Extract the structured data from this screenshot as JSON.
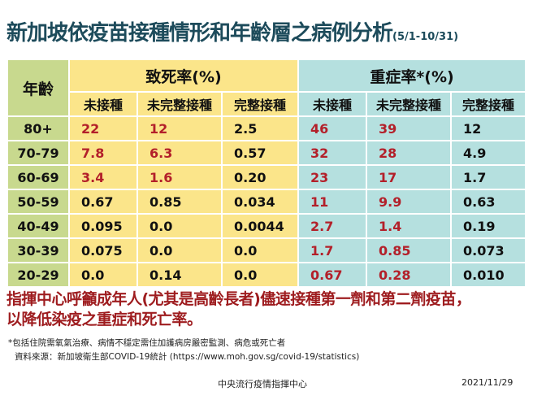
{
  "title": "新加坡依疫苗接種情形和年齡層之病例分析",
  "date_range": "(5/1-10/31)",
  "table": {
    "age_header": "年齡",
    "groups": [
      "致死率(%)",
      "重症率*(%)"
    ],
    "subheaders": [
      "未接種",
      "未完整接種",
      "完整接種",
      "未接種",
      "未完整接種",
      "完整接種"
    ],
    "rows": [
      {
        "age": "80+",
        "values": [
          "22",
          "12",
          "2.5",
          "46",
          "39",
          "12"
        ],
        "highlight": [
          true,
          true,
          false,
          true,
          true,
          false
        ]
      },
      {
        "age": "70-79",
        "values": [
          "7.8",
          "6.3",
          "0.57",
          "32",
          "28",
          "4.9"
        ],
        "highlight": [
          true,
          true,
          false,
          true,
          true,
          false
        ]
      },
      {
        "age": "60-69",
        "values": [
          "3.4",
          "1.6",
          "0.20",
          "23",
          "17",
          "1.7"
        ],
        "highlight": [
          true,
          true,
          false,
          true,
          true,
          false
        ]
      },
      {
        "age": "50-59",
        "values": [
          "0.67",
          "0.85",
          "0.034",
          "11",
          "9.9",
          "0.63"
        ],
        "highlight": [
          false,
          false,
          false,
          true,
          true,
          false
        ]
      },
      {
        "age": "40-49",
        "values": [
          "0.095",
          "0.0",
          "0.0044",
          "2.7",
          "1.4",
          "0.19"
        ],
        "highlight": [
          false,
          false,
          false,
          true,
          true,
          false
        ]
      },
      {
        "age": "30-39",
        "values": [
          "0.075",
          "0.0",
          "0.0",
          "1.7",
          "0.85",
          "0.073"
        ],
        "highlight": [
          false,
          false,
          false,
          true,
          true,
          false
        ]
      },
      {
        "age": "20-29",
        "values": [
          "0.0",
          "0.14",
          "0.0",
          "0.67",
          "0.28",
          "0.010"
        ],
        "highlight": [
          false,
          false,
          false,
          true,
          true,
          false
        ]
      }
    ]
  },
  "colors": {
    "title": "#1d4b5b",
    "highlight": "#b3202a",
    "age_col": "#c8d98e",
    "death_cols": "#fbe58a",
    "severe_cols": "#b5e0df",
    "message": "#9e1c1f"
  },
  "message_line1": "指揮中心呼籲成年人(尤其是高齡長者)儘速接種第一劑和第二劑疫苗，",
  "message_line2": "以降低染疫之重症和死亡率。",
  "footnote": "*包括住院需氧氣治療、病情不穩定需住加護病房嚴密監測、病危或死亡者",
  "source": "資料來源：新加坡衛生部COVID-19統計 (https://www.moh.gov.sg/covid-19/statistics)",
  "footer": {
    "org": "中央流行疫情指揮中心",
    "date": "2021/11/29"
  }
}
